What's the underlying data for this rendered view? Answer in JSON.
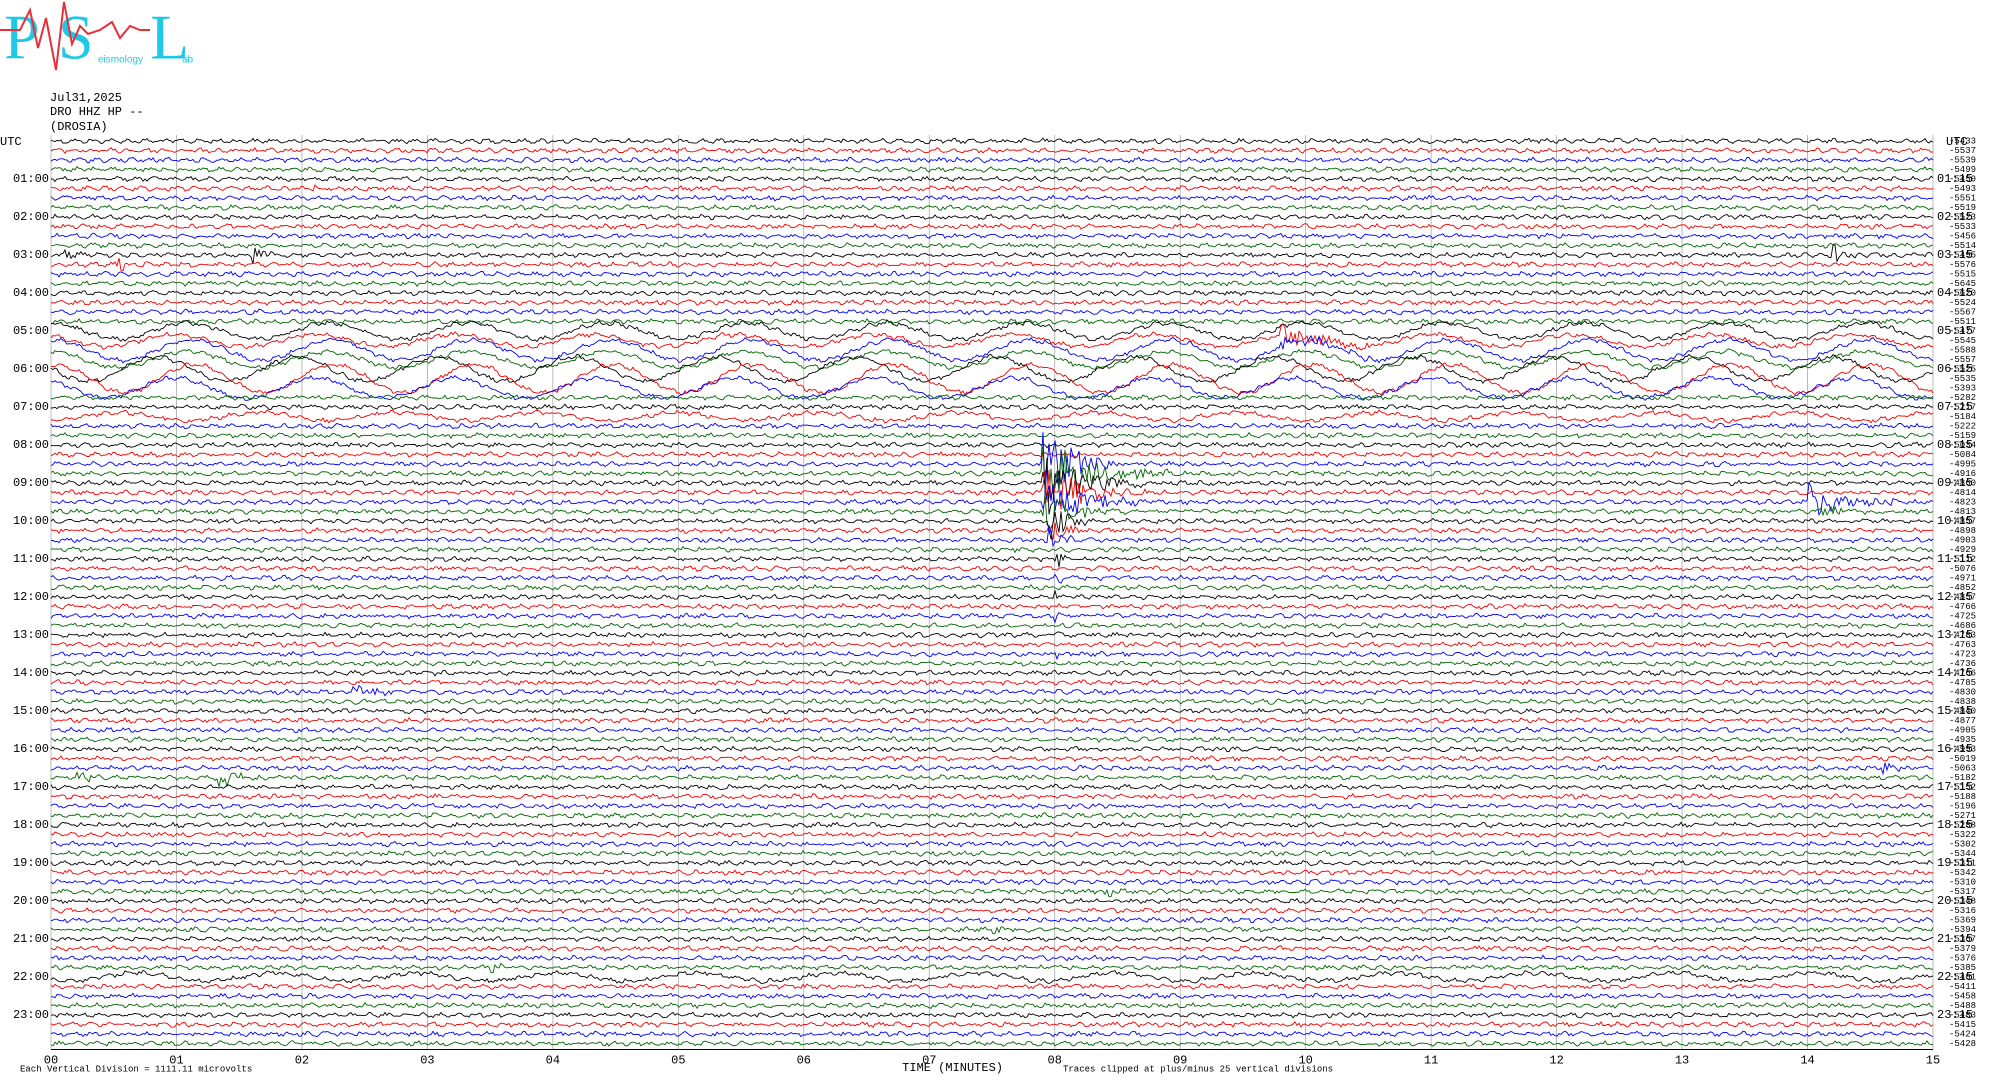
{
  "logo": {
    "letters": [
      "P",
      "S",
      "L"
    ],
    "subtitles": [
      "eismology",
      "ab"
    ]
  },
  "header": {
    "date": "Jul31,2025",
    "channel": "DRO HHZ HP --",
    "station": "(DROSIA)"
  },
  "left_axis": {
    "title": "UTC",
    "labels": [
      "01:00",
      "02:00",
      "03:00",
      "04:00",
      "05:00",
      "06:00",
      "07:00",
      "08:00",
      "09:00",
      "10:00",
      "11:00",
      "12:00",
      "13:00",
      "14:00",
      "15:00",
      "16:00",
      "17:00",
      "18:00",
      "19:00",
      "20:00",
      "21:00",
      "22:00",
      "23:00"
    ]
  },
  "right_axis": {
    "title": "UTC",
    "labels": [
      "01:15",
      "02:15",
      "03:15",
      "04:15",
      "05:15",
      "06:15",
      "07:15",
      "08:15",
      "09:15",
      "10:15",
      "11:15",
      "12:15",
      "13:15",
      "14:15",
      "15:15",
      "16:15",
      "17:15",
      "18:15",
      "19:15",
      "20:15",
      "21:15",
      "22:15",
      "23:15"
    ]
  },
  "offsets": [
    -5433,
    -5537,
    -5539,
    -5499,
    -5459,
    -5493,
    -5551,
    -5519,
    -5523,
    -5533,
    -5456,
    -5514,
    -5495,
    -5576,
    -5515,
    -5645,
    -5620,
    -5524,
    -5567,
    -5511,
    -5477,
    -5545,
    -5588,
    -5557,
    -5525,
    -5535,
    -5393,
    -5282,
    -5217,
    -5184,
    -5222,
    -5159,
    -5034,
    -5084,
    -4995,
    -4916,
    -4860,
    -4814,
    -4823,
    -4813,
    -4857,
    -4898,
    -4903,
    -4929,
    -5112,
    -5076,
    -4971,
    -4852,
    -4857,
    -4766,
    -4725,
    -4686,
    -4783,
    -4763,
    -4723,
    -4736,
    -4766,
    -4785,
    -4830,
    -4838,
    -4840,
    -4877,
    -4905,
    -4935,
    -4993,
    -5019,
    -5063,
    -5182,
    -5152,
    -5188,
    -5196,
    -5271,
    -5288,
    -5322,
    -5302,
    -5344,
    -5311,
    -5342,
    -5310,
    -5317,
    -5348,
    -5316,
    -5369,
    -5394,
    -5367,
    -5379,
    -5376,
    -5385,
    -5401,
    -5411,
    -5458,
    -5488,
    -5483,
    -5415,
    -5424,
    -5428
  ],
  "x_axis": {
    "labels": [
      "00",
      "01",
      "02",
      "03",
      "04",
      "05",
      "06",
      "07",
      "08",
      "09",
      "10",
      "11",
      "12",
      "13",
      "14",
      "15"
    ],
    "title": "TIME (MINUTES)"
  },
  "footer": {
    "scale": "Each Vertical Division = 1111.11 microvolts",
    "clip": "Traces clipped at plus/minus 25 vertical divisions"
  }
}
